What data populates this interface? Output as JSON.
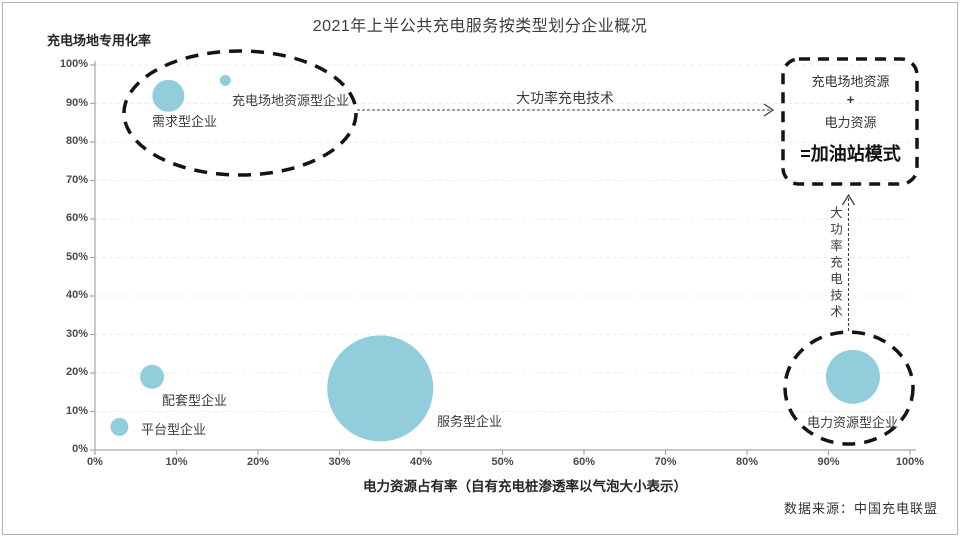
{
  "page": {
    "source": "数据来源：中国充电联盟",
    "border_color": "#b3b3b3"
  },
  "colors": {
    "axis": "#a6a6a6",
    "grid": "#ececec",
    "text": "#404040",
    "annotation": "#141414"
  },
  "chart_data": {
    "type": "scatter",
    "subtype": "bubble",
    "title": "2021年上半公共充电服务按类型划分企业概况",
    "xlabel": "电力资源占有率（自有充电桩渗透率以气泡大小表示）",
    "ylabel": "充电场地专用化率",
    "xlim": [
      0,
      100
    ],
    "ylim": [
      0,
      100
    ],
    "x_ticks": [
      "0%",
      "10%",
      "20%",
      "30%",
      "40%",
      "50%",
      "60%",
      "70%",
      "80%",
      "90%",
      "100%"
    ],
    "y_ticks": [
      "0%",
      "10%",
      "20%",
      "30%",
      "40%",
      "50%",
      "60%",
      "70%",
      "80%",
      "90%",
      "100%"
    ],
    "grid": "horizontal-dashed",
    "legend_position": "none",
    "bubble_color": "#92CDDC",
    "points": [
      {
        "id": "demand",
        "label": "需求型企业",
        "x": 9,
        "y": 92,
        "r": 16
      },
      {
        "id": "site-resource",
        "label": "充电场地资源型企业",
        "x": 16,
        "y": 96,
        "r": 5.5
      },
      {
        "id": "supporting",
        "label": "配套型企业",
        "x": 7,
        "y": 19,
        "r": 12
      },
      {
        "id": "platform",
        "label": "平台型企业",
        "x": 3,
        "y": 6,
        "r": 9
      },
      {
        "id": "service",
        "label": "服务型企业",
        "x": 35,
        "y": 16,
        "r": 53
      },
      {
        "id": "power-resource",
        "label": "电力资源型企业",
        "x": 93,
        "y": 19,
        "r": 27
      }
    ],
    "annotations": {
      "h_arrow_label": "大功率充电技术",
      "v_arrow_label": "大功率充电技术",
      "combo_box": {
        "line1": "充电场地资源",
        "plus": "+",
        "line2": "电力资源",
        "result": "=加油站模式"
      }
    }
  }
}
